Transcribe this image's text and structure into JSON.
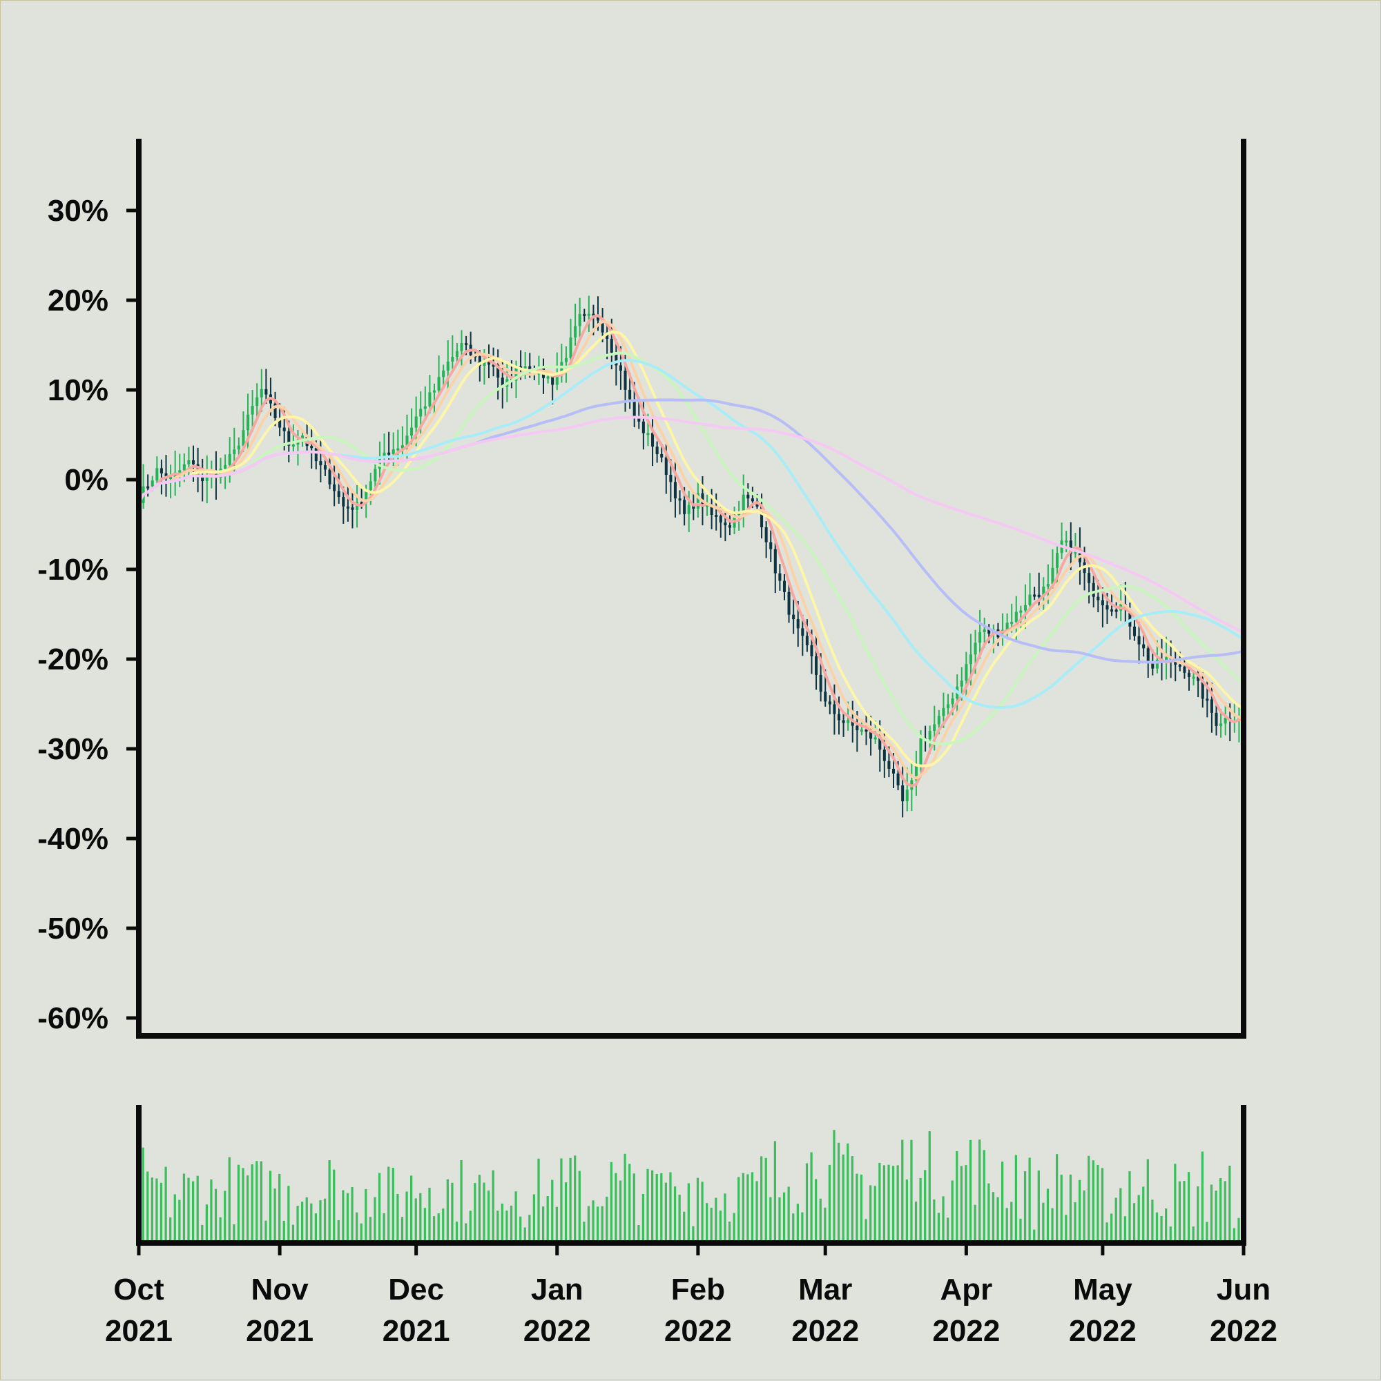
{
  "chart_data": {
    "type": "candlestick",
    "price_panel": {
      "ylim": [
        -0.62,
        0.38
      ],
      "y_ticks": [
        {
          "value": 0.3,
          "label": "30%"
        },
        {
          "value": 0.2,
          "label": "20%"
        },
        {
          "value": 0.1,
          "label": "10%"
        },
        {
          "value": 0.0,
          "label": "0%"
        },
        {
          "value": -0.1,
          "label": "-10%"
        },
        {
          "value": -0.2,
          "label": "-20%"
        },
        {
          "value": -0.3,
          "label": "-30%"
        },
        {
          "value": -0.4,
          "label": "-40%"
        },
        {
          "value": -0.5,
          "label": "-50%"
        },
        {
          "value": -0.6,
          "label": "-60%"
        }
      ]
    },
    "x_range": [
      "2021-10-01",
      "2022-06-01"
    ],
    "x_ticks": [
      {
        "date": "2021-10-01",
        "month": "Oct",
        "year": "2021"
      },
      {
        "date": "2021-11-01",
        "month": "Nov",
        "year": "2021"
      },
      {
        "date": "2021-12-01",
        "month": "Dec",
        "year": "2021"
      },
      {
        "date": "2022-01-01",
        "month": "Jan",
        "year": "2022"
      },
      {
        "date": "2022-02-01",
        "month": "Feb",
        "year": "2022"
      },
      {
        "date": "2022-03-01",
        "month": "Mar",
        "year": "2022"
      },
      {
        "date": "2022-04-01",
        "month": "Apr",
        "year": "2022"
      },
      {
        "date": "2022-05-01",
        "month": "May",
        "year": "2022"
      },
      {
        "date": "2022-06-01",
        "month": "Jun",
        "year": "2022"
      }
    ],
    "close_path": [
      [
        "2021-10-01",
        -0.02
      ],
      [
        "2021-10-05",
        0.01
      ],
      [
        "2021-10-08",
        0.0
      ],
      [
        "2021-10-12",
        0.02
      ],
      [
        "2021-10-15",
        0.0
      ],
      [
        "2021-10-19",
        0.01
      ],
      [
        "2021-10-22",
        0.03
      ],
      [
        "2021-10-26",
        0.08
      ],
      [
        "2021-10-28",
        0.1
      ],
      [
        "2021-10-31",
        0.07
      ],
      [
        "2021-11-03",
        0.04
      ],
      [
        "2021-11-06",
        0.05
      ],
      [
        "2021-11-09",
        0.02
      ],
      [
        "2021-11-12",
        0.0
      ],
      [
        "2021-11-15",
        -0.03
      ],
      [
        "2021-11-18",
        -0.03
      ],
      [
        "2021-11-21",
        0.0
      ],
      [
        "2021-11-24",
        0.03
      ],
      [
        "2021-11-28",
        0.04
      ],
      [
        "2021-12-01",
        0.07
      ],
      [
        "2021-12-05",
        0.1
      ],
      [
        "2021-12-08",
        0.13
      ],
      [
        "2021-12-11",
        0.15
      ],
      [
        "2021-12-15",
        0.13
      ],
      [
        "2021-12-18",
        0.13
      ],
      [
        "2021-12-20",
        0.1
      ],
      [
        "2021-12-24",
        0.13
      ],
      [
        "2021-12-28",
        0.12
      ],
      [
        "2021-12-31",
        0.11
      ],
      [
        "2022-01-03",
        0.14
      ],
      [
        "2022-01-06",
        0.18
      ],
      [
        "2022-01-10",
        0.18
      ],
      [
        "2022-01-12",
        0.16
      ],
      [
        "2022-01-15",
        0.12
      ],
      [
        "2022-01-18",
        0.07
      ],
      [
        "2022-01-22",
        0.04
      ],
      [
        "2022-01-25",
        0.01
      ],
      [
        "2022-01-29",
        -0.04
      ],
      [
        "2022-02-01",
        -0.02
      ],
      [
        "2022-02-04",
        -0.04
      ],
      [
        "2022-02-08",
        -0.05
      ],
      [
        "2022-02-11",
        -0.02
      ],
      [
        "2022-02-14",
        -0.03
      ],
      [
        "2022-02-18",
        -0.1
      ],
      [
        "2022-02-22",
        -0.16
      ],
      [
        "2022-02-26",
        -0.2
      ],
      [
        "2022-03-01",
        -0.25
      ],
      [
        "2022-03-05",
        -0.27
      ],
      [
        "2022-03-09",
        -0.28
      ],
      [
        "2022-03-12",
        -0.29
      ],
      [
        "2022-03-15",
        -0.32
      ],
      [
        "2022-03-18",
        -0.36
      ],
      [
        "2022-03-20",
        -0.34
      ],
      [
        "2022-03-22",
        -0.29
      ],
      [
        "2022-03-24",
        -0.28
      ],
      [
        "2022-03-27",
        -0.26
      ],
      [
        "2022-03-31",
        -0.22
      ],
      [
        "2022-04-04",
        -0.17
      ],
      [
        "2022-04-08",
        -0.17
      ],
      [
        "2022-04-12",
        -0.15
      ],
      [
        "2022-04-15",
        -0.13
      ],
      [
        "2022-04-19",
        -0.12
      ],
      [
        "2022-04-22",
        -0.07
      ],
      [
        "2022-04-25",
        -0.08
      ],
      [
        "2022-04-28",
        -0.12
      ],
      [
        "2022-05-02",
        -0.14
      ],
      [
        "2022-05-05",
        -0.14
      ],
      [
        "2022-05-09",
        -0.18
      ],
      [
        "2022-05-12",
        -0.21
      ],
      [
        "2022-05-15",
        -0.2
      ],
      [
        "2022-05-19",
        -0.21
      ],
      [
        "2022-05-22",
        -0.23
      ],
      [
        "2022-05-26",
        -0.27
      ],
      [
        "2022-06-01",
        -0.26
      ]
    ],
    "moving_averages": [
      {
        "color": "#f7a8a0",
        "window": 5
      },
      {
        "color": "#fbd2a8",
        "window": 8
      },
      {
        "color": "#fdf5a8",
        "window": 12
      },
      {
        "color": "#c9f6bd",
        "window": 25
      },
      {
        "color": "#a8ecf8",
        "window": 45
      },
      {
        "color": "#b7bdf6",
        "window": 75
      },
      {
        "color": "#f6c8f4",
        "window": 130
      }
    ],
    "colors": {
      "up": "#24b457",
      "down": "#0d3440",
      "volume": "#3dbe5e",
      "background": "#dfe3dc",
      "axis": "#0a0a0a"
    }
  }
}
